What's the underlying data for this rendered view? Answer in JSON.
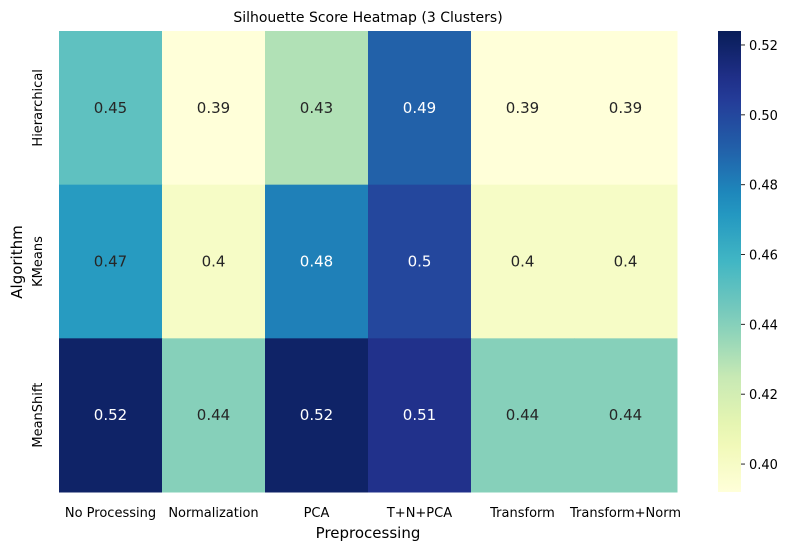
{
  "chart_data": {
    "type": "heatmap",
    "title": "Silhouette Score Heatmap (3 Clusters)",
    "xlabel": "Preprocessing",
    "ylabel": "Algorithm",
    "columns": [
      "No Processing",
      "Normalization",
      "PCA",
      "T+N+PCA",
      "Transform",
      "Transform+Norm"
    ],
    "rows": [
      "Hierarchical",
      "KMeans",
      "MeanShift"
    ],
    "values": [
      [
        0.45,
        0.39,
        0.43,
        0.49,
        0.39,
        0.39
      ],
      [
        0.47,
        0.4,
        0.48,
        0.5,
        0.4,
        0.4
      ],
      [
        0.52,
        0.44,
        0.52,
        0.51,
        0.44,
        0.44
      ]
    ],
    "annotations": [
      [
        "0.45",
        "0.39",
        "0.43",
        "0.49",
        "0.39",
        "0.39"
      ],
      [
        "0.47",
        "0.4",
        "0.48",
        "0.5",
        "0.4",
        "0.4"
      ],
      [
        "0.52",
        "0.44",
        "0.52",
        "0.51",
        "0.44",
        "0.44"
      ]
    ],
    "colorbar": {
      "min": 0.392,
      "max": 0.524,
      "ticks": [
        0.4,
        0.42,
        0.44,
        0.46,
        0.48,
        0.5,
        0.52
      ],
      "tick_labels": [
        "0.40",
        "0.42",
        "0.44",
        "0.46",
        "0.48",
        "0.50",
        "0.52"
      ],
      "colormap": "YlGnBu"
    },
    "grid": false,
    "legend": "colorbar-right"
  }
}
